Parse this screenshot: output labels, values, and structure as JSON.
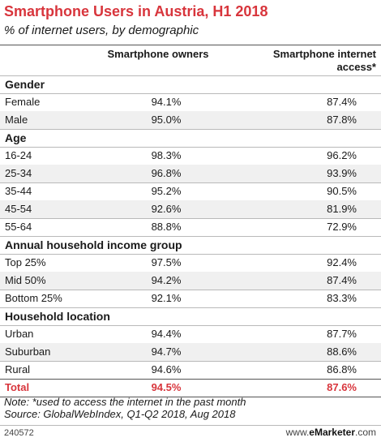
{
  "header": {
    "title": "Smartphone Users in Austria, H1 2018",
    "subtitle": "% of internet users, by demographic"
  },
  "columns": {
    "col1": "Smartphone owners",
    "col2_line1": "Smartphone internet",
    "col2_line2": "access*"
  },
  "chart_data": {
    "type": "table",
    "title": "Smartphone Users in Austria, H1 2018",
    "subtitle": "% of internet users, by demographic",
    "columns": [
      "Smartphone owners",
      "Smartphone internet access*"
    ],
    "groups": [
      {
        "name": "Gender",
        "rows": [
          {
            "label": "Female",
            "values": [
              "94.1%",
              "87.4%"
            ]
          },
          {
            "label": "Male",
            "values": [
              "95.0%",
              "87.8%"
            ]
          }
        ]
      },
      {
        "name": "Age",
        "rows": [
          {
            "label": "16-24",
            "values": [
              "98.3%",
              "96.2%"
            ]
          },
          {
            "label": "25-34",
            "values": [
              "96.8%",
              "93.9%"
            ]
          },
          {
            "label": "35-44",
            "values": [
              "95.2%",
              "90.5%"
            ]
          },
          {
            "label": "45-54",
            "values": [
              "92.6%",
              "81.9%"
            ]
          },
          {
            "label": "55-64",
            "values": [
              "88.8%",
              "72.9%"
            ]
          }
        ]
      },
      {
        "name": "Annual household income group",
        "rows": [
          {
            "label": "Top 25%",
            "values": [
              "97.5%",
              "92.4%"
            ]
          },
          {
            "label": "Mid 50%",
            "values": [
              "94.2%",
              "87.4%"
            ]
          },
          {
            "label": "Bottom 25%",
            "values": [
              "92.1%",
              "83.3%"
            ]
          }
        ]
      },
      {
        "name": "Household location",
        "rows": [
          {
            "label": "Urban",
            "values": [
              "94.4%",
              "87.7%"
            ]
          },
          {
            "label": "Suburban",
            "values": [
              "94.7%",
              "88.6%"
            ]
          },
          {
            "label": "Rural",
            "values": [
              "94.6%",
              "86.8%"
            ]
          }
        ]
      }
    ],
    "total": {
      "label": "Total",
      "values": [
        "94.5%",
        "87.6%"
      ]
    }
  },
  "footer": {
    "note": "Note: *used to access the internet in the past month",
    "source": "Source: GlobalWebIndex, Q1-Q2 2018, Aug 2018",
    "chart_id": "240572",
    "brand_prefix": "www.",
    "brand_name": "eMarketer",
    "brand_suffix": ".com"
  },
  "colors": {
    "accent": "#d8353c",
    "row_alt": "#f0f0f0"
  }
}
